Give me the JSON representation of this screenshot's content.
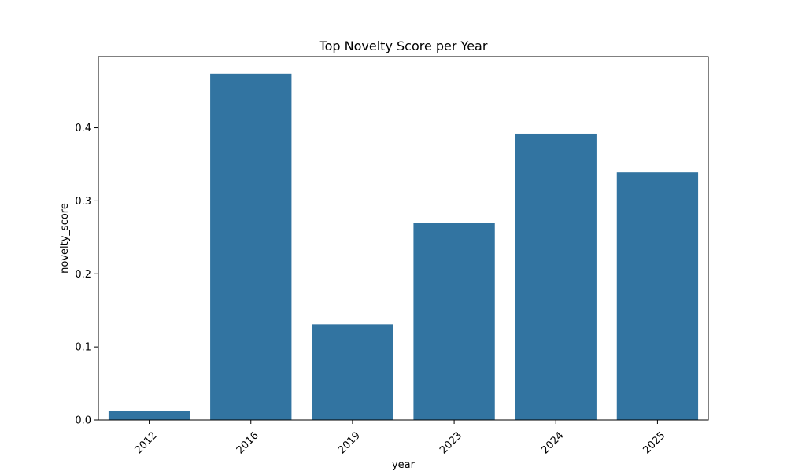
{
  "chart_data": {
    "type": "bar",
    "title": "Top Novelty Score per Year",
    "xlabel": "year",
    "ylabel": "novelty_score",
    "categories": [
      "2012",
      "2016",
      "2019",
      "2023",
      "2024",
      "2025"
    ],
    "values": [
      0.012,
      0.474,
      0.131,
      0.27,
      0.392,
      0.339
    ],
    "ylim": [
      0,
      0.4975
    ],
    "yticks": [
      0.0,
      0.1,
      0.2,
      0.3,
      0.4
    ],
    "ytick_labels": [
      "0.0",
      "0.1",
      "0.2",
      "0.3",
      "0.4"
    ],
    "grid": false,
    "bar_color": "#3274a1",
    "xtick_rotation": 45
  }
}
